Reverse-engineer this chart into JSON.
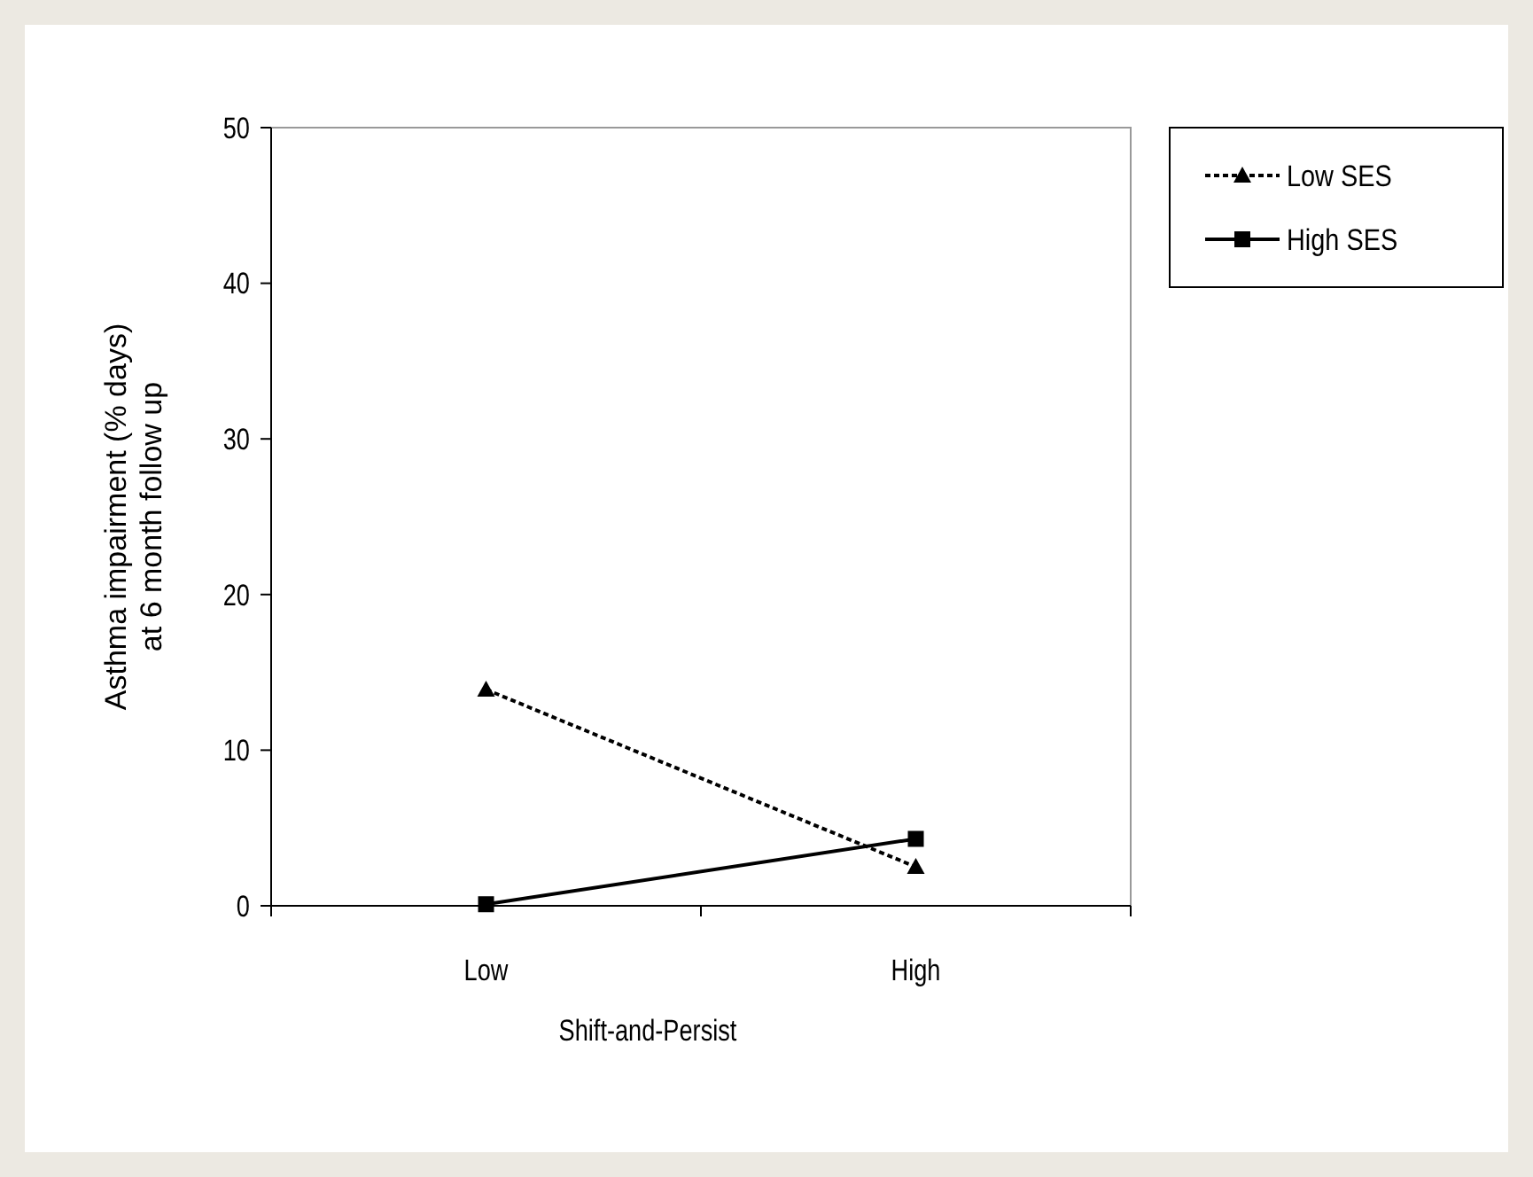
{
  "chart_data": {
    "type": "line",
    "xlabel": "Shift-and-Persist",
    "ylabel": "Asthma impairment (% days)\nat 6 month follow up",
    "categories": [
      "Low",
      "High"
    ],
    "ylim": [
      0,
      50
    ],
    "yticks": [
      0,
      10,
      20,
      30,
      40,
      50
    ],
    "legend": "top right",
    "grid": false,
    "series": [
      {
        "name": "Low SES",
        "color": "#000000",
        "values": [
          13.9,
          2.5
        ],
        "marker": "triangle",
        "line_style": "dotted"
      },
      {
        "name": "High SES",
        "color": "#000000",
        "values": [
          0.1,
          4.3
        ],
        "marker": "square",
        "line_style": "solid"
      }
    ]
  }
}
